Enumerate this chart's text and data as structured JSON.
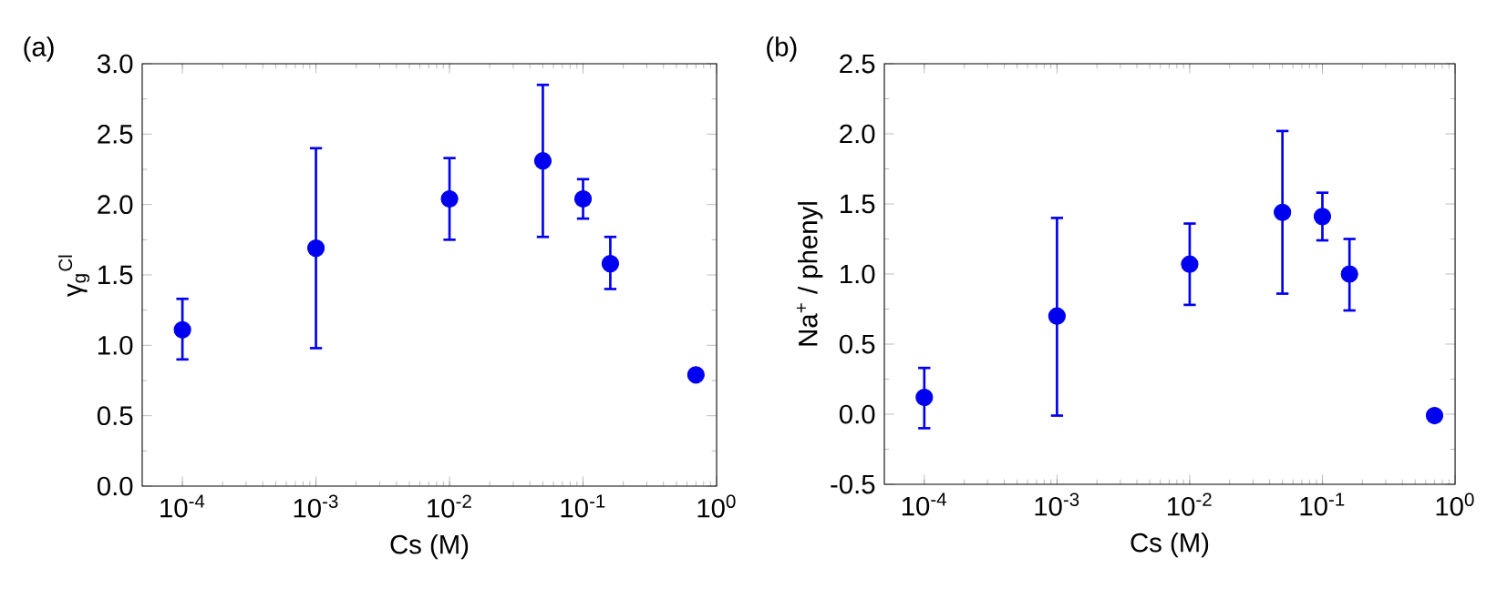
{
  "chart_data": [
    {
      "type": "scatter",
      "title": "(a)",
      "xlabel": "Cs (M)",
      "ylabel": "γ$_{g}$$^{Cl}$",
      "log": "x",
      "grid": false,
      "x": [
        0.0001,
        0.001,
        0.01,
        0.05,
        0.1,
        0.16,
        0.7
      ],
      "series": [
        {
          "color": "#0000f0",
          "values": [
            1.11,
            1.69,
            2.04,
            2.31,
            2.04,
            1.58,
            0.79
          ],
          "errors": [
            [
              0.9,
              1.33
            ],
            [
              0.98,
              2.4
            ],
            [
              1.75,
              2.33
            ],
            [
              1.77,
              2.85
            ],
            [
              1.9,
              2.18
            ],
            [
              1.4,
              1.77
            ],
            null
          ]
        }
      ],
      "xlim": [
        5e-05,
        1
      ],
      "xticks": [
        {
          "value": 0.0001,
          "label": "10$^{-4}$"
        },
        {
          "value": 0.001,
          "label": "10$^{-3}$"
        },
        {
          "value": 0.01,
          "label": "10$^{-2}$"
        },
        {
          "value": 0.1,
          "label": "10$^{-1}$"
        },
        {
          "value": 1,
          "label": "10$^{0}$"
        }
      ],
      "ylim": [
        0,
        3
      ],
      "yticks": [
        {
          "value": 0,
          "label": "0.0"
        },
        {
          "value": 0.5,
          "label": "0.5"
        },
        {
          "value": 1,
          "label": "1.0"
        },
        {
          "value": 1.5,
          "label": "1.5"
        },
        {
          "value": 2,
          "label": "2.0"
        },
        {
          "value": 2.5,
          "label": "2.5"
        },
        {
          "value": 3,
          "label": "3.0"
        }
      ]
    },
    {
      "type": "scatter",
      "title": "(b)",
      "xlabel": "Cs (M)",
      "ylabel": "Na$^{+}$ / phenyl",
      "log": "x",
      "grid": false,
      "x": [
        0.0001,
        0.001,
        0.01,
        0.05,
        0.1,
        0.16,
        0.7
      ],
      "series": [
        {
          "color": "#0000f0",
          "values": [
            0.12,
            0.7,
            1.07,
            1.44,
            1.41,
            1.0,
            -0.01
          ],
          "errors": [
            [
              -0.1,
              0.33
            ],
            [
              -0.01,
              1.4
            ],
            [
              0.78,
              1.36
            ],
            [
              0.86,
              2.02
            ],
            [
              1.24,
              1.58
            ],
            [
              0.74,
              1.25
            ],
            null
          ]
        }
      ],
      "xlim": [
        5e-05,
        1
      ],
      "xticks": [
        {
          "value": 0.0001,
          "label": "10$^{-4}$"
        },
        {
          "value": 0.001,
          "label": "10$^{-3}$"
        },
        {
          "value": 0.01,
          "label": "10$^{-2}$"
        },
        {
          "value": 0.1,
          "label": "10$^{-1}$"
        },
        {
          "value": 1,
          "label": "10$^{0}$"
        }
      ],
      "ylim": [
        -0.5,
        2.5
      ],
      "yticks": [
        {
          "value": -0.5,
          "label": "-0.5"
        },
        {
          "value": 0,
          "label": "0.0"
        },
        {
          "value": 0.5,
          "label": "0.5"
        },
        {
          "value": 1,
          "label": "1.0"
        },
        {
          "value": 1.5,
          "label": "1.5"
        },
        {
          "value": 2,
          "label": "2.0"
        },
        {
          "value": 2.5,
          "label": "2.5"
        }
      ]
    }
  ]
}
